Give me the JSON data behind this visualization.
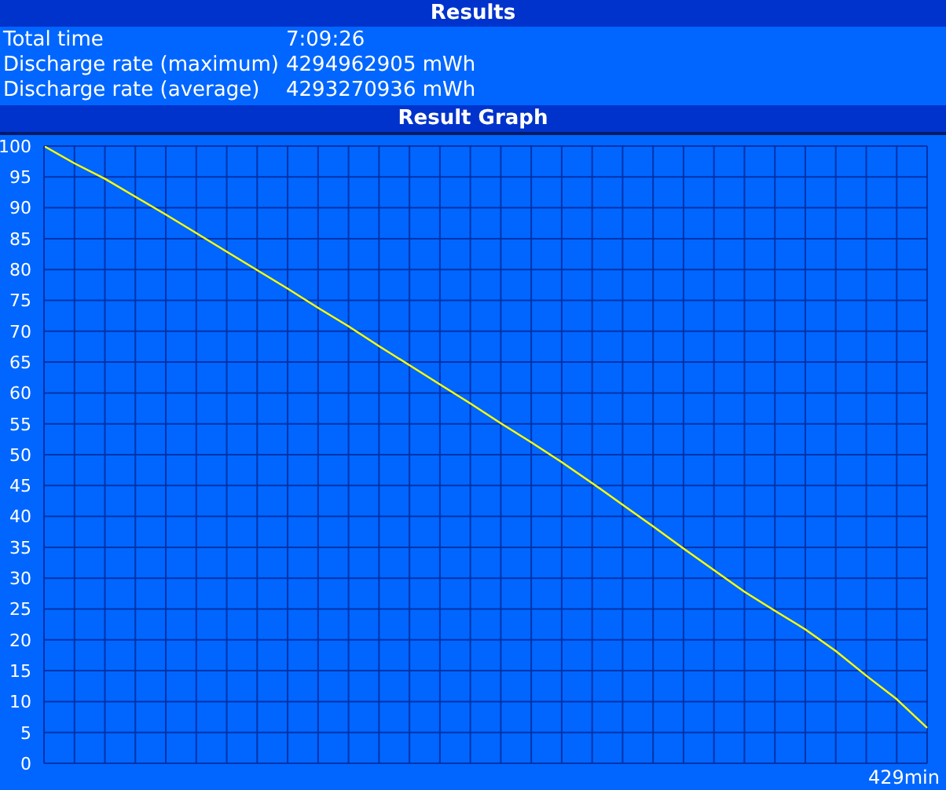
{
  "chart_data": {
    "type": "line",
    "title": "Results",
    "subtitle": "Result Graph",
    "annotations": [
      "Total time",
      "7:09:26",
      "Discharge rate (maximum)",
      "4294962905 mWh",
      "Discharge rate (average)",
      "4293270936 mWh",
      "429min"
    ],
    "categories": [
      null,
      null,
      null,
      null,
      null,
      null,
      null,
      null,
      null,
      null,
      null,
      null,
      null,
      null,
      null,
      null,
      null,
      null,
      null,
      null,
      null,
      null,
      null,
      null,
      null,
      null,
      null,
      null,
      null,
      null
    ],
    "series": [
      {
        "color": "#ffff00",
        "values": [
          100,
          97.2,
          94.7,
          91.8,
          88.9,
          85.9,
          82.9,
          79.9,
          76.9,
          73.8,
          70.8,
          67.6,
          64.5,
          61.4,
          58.3,
          55.1,
          52.0,
          48.8,
          45.4,
          41.9,
          38.4,
          34.8,
          31.3,
          27.8,
          24.7,
          21.7,
          18.2,
          14.2,
          10.4,
          5.75
        ]
      }
    ],
    "ylim": [
      0,
      100
    ],
    "yticks": [
      0,
      5,
      10,
      15,
      20,
      25,
      30,
      35,
      40,
      45,
      50,
      55,
      60,
      65,
      70,
      75,
      80,
      85,
      90,
      95,
      100
    ],
    "grid": true,
    "marker": "none",
    "line_style": "solid"
  }
}
